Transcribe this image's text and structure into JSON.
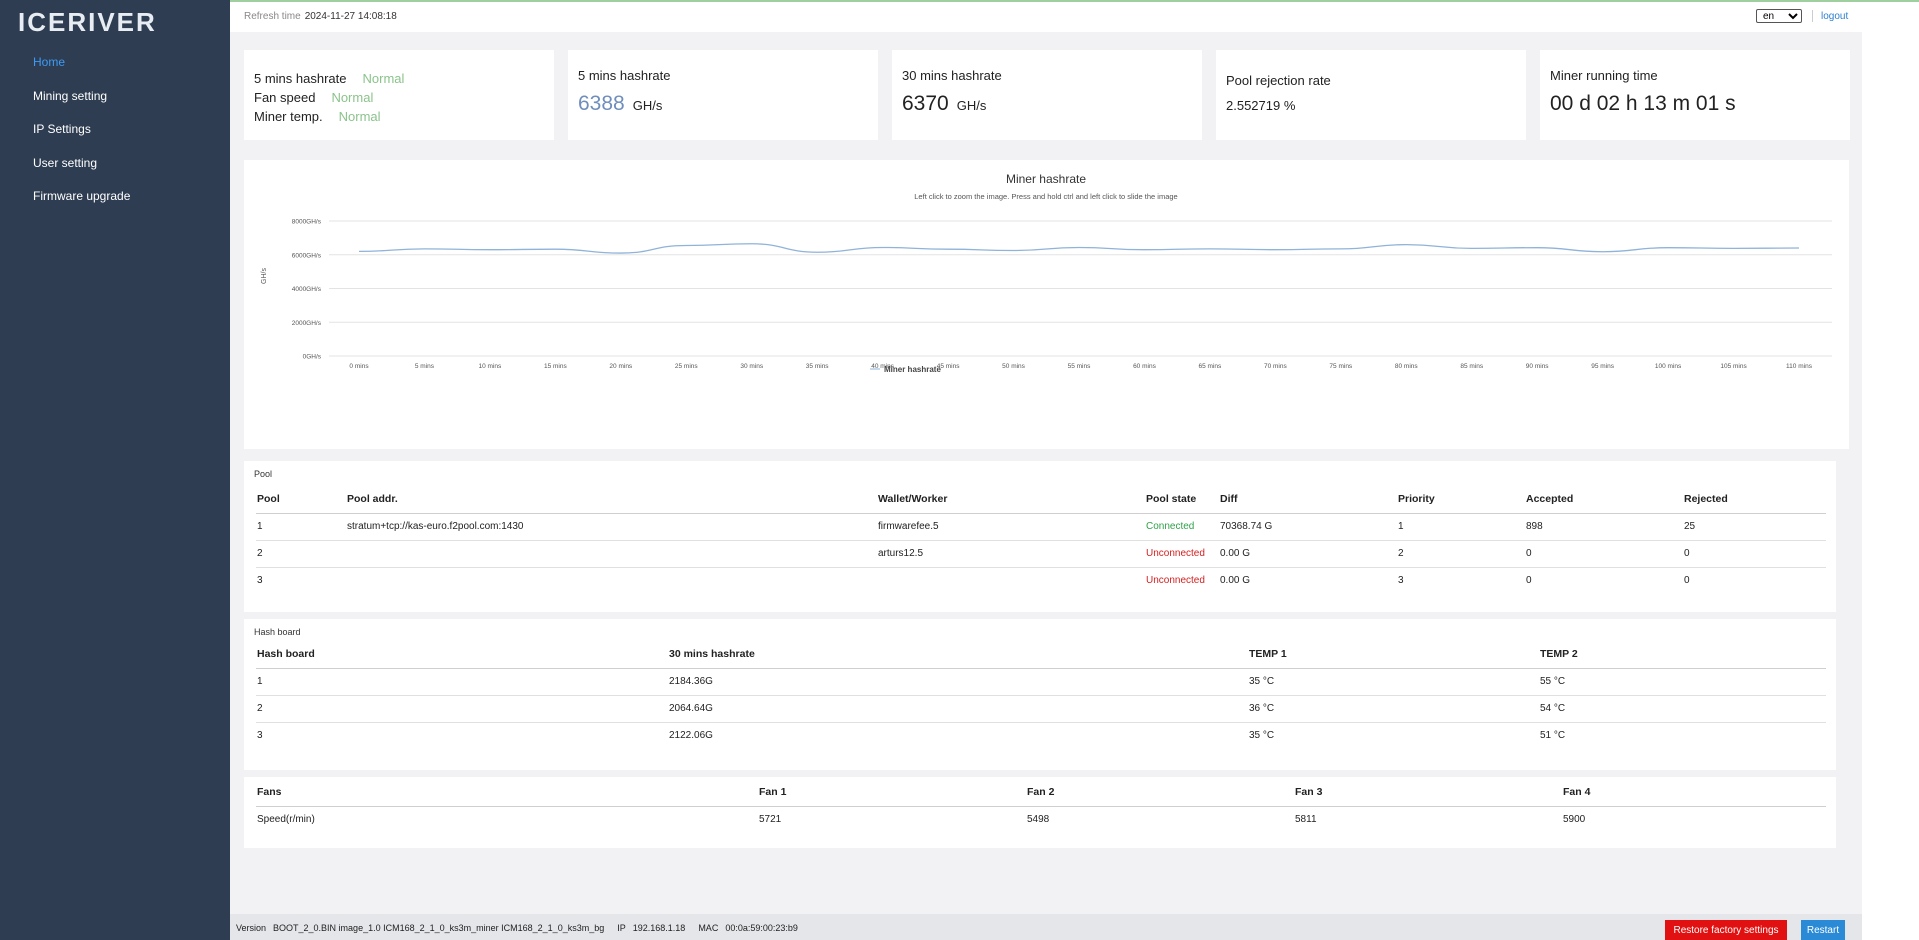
{
  "brand": {
    "logo_text": "ICERIVER"
  },
  "sidebar": {
    "items": [
      {
        "label": "Home",
        "active": true
      },
      {
        "label": "Mining setting"
      },
      {
        "label": "IP Settings"
      },
      {
        "label": "User setting"
      },
      {
        "label": "Firmware upgrade"
      }
    ]
  },
  "header": {
    "refresh_label": "Refresh time",
    "refresh_value": "2024-11-27 14:08:18",
    "language": "en",
    "logout": "logout"
  },
  "status": {
    "rows": [
      {
        "label": "5 mins hashrate",
        "value": "Normal"
      },
      {
        "label": "Fan speed",
        "value": "Normal"
      },
      {
        "label": "Miner temp.",
        "value": "Normal"
      }
    ],
    "ok_color": "#8bc38b"
  },
  "stats": {
    "hashrate_5m": {
      "label": "5 mins hashrate",
      "value": "6388",
      "unit": "GH/s"
    },
    "hashrate_30m": {
      "label": "30 mins hashrate",
      "value": "6370",
      "unit": "GH/s"
    },
    "pool_rejection": {
      "label": "Pool rejection rate",
      "value": "2.552719 %"
    },
    "running_time": {
      "label": "Miner running time",
      "value": "00 d 02 h 13 m 01 s"
    }
  },
  "chart_data": {
    "type": "line",
    "title": "Miner hashrate",
    "subtitle": "Left click to zoom the image. Press and hold ctrl and left click to slide the image",
    "ylabel": "GH/s",
    "xlabel": "",
    "ylim": [
      0,
      8000
    ],
    "yticks": [
      "0GH/s",
      "2000GH/s",
      "4000GH/s",
      "6000GH/s",
      "8000GH/s"
    ],
    "grid": true,
    "legend": "bottom",
    "categories": [
      "0 mins",
      "5 mins",
      "10 mins",
      "15 mins",
      "20 mins",
      "25 mins",
      "30 mins",
      "35 mins",
      "40 mins",
      "45 mins",
      "50 mins",
      "55 mins",
      "60 mins",
      "65 mins",
      "70 mins",
      "75 mins",
      "80 mins",
      "85 mins",
      "90 mins",
      "95 mins",
      "100 mins",
      "105 mins",
      "110 mins"
    ],
    "series": [
      {
        "name": "Miner hashrate",
        "color": "#8fb3d9",
        "values": [
          6200,
          6350,
          6300,
          6330,
          6100,
          6550,
          6650,
          6150,
          6430,
          6330,
          6250,
          6430,
          6300,
          6350,
          6300,
          6350,
          6600,
          6380,
          6420,
          6180,
          6420,
          6380,
          6400
        ]
      }
    ]
  },
  "pool": {
    "caption": "Pool",
    "headers": [
      "Pool",
      "Pool addr.",
      "Wallet/Worker",
      "Pool state",
      "Diff",
      "Priority",
      "Accepted",
      "Rejected"
    ],
    "rows": [
      {
        "pool": "1",
        "addr": "stratum+tcp://kas-euro.f2pool.com:1430",
        "worker": "firmwarefee.5",
        "state": "Connected",
        "diff": "70368.74 G",
        "priority": "1",
        "accepted": "898",
        "rejected": "25"
      },
      {
        "pool": "2",
        "addr": "",
        "worker": "arturs12.5",
        "state": "Unconnected",
        "diff": "0.00 G",
        "priority": "2",
        "accepted": "0",
        "rejected": "0"
      },
      {
        "pool": "3",
        "addr": "",
        "worker": "",
        "state": "Unconnected",
        "diff": "0.00 G",
        "priority": "3",
        "accepted": "0",
        "rejected": "0"
      }
    ]
  },
  "hashboard": {
    "caption": "Hash board",
    "headers": [
      "Hash board",
      "30 mins hashrate",
      "TEMP 1",
      "TEMP 2"
    ],
    "rows": [
      {
        "board": "1",
        "hashrate": "2184.36G",
        "temp1": "35 °C",
        "temp2": "55 °C"
      },
      {
        "board": "2",
        "hashrate": "2064.64G",
        "temp1": "36 °C",
        "temp2": "54 °C"
      },
      {
        "board": "3",
        "hashrate": "2122.06G",
        "temp1": "35 °C",
        "temp2": "51 °C"
      }
    ]
  },
  "fans": {
    "headers": [
      "Fans",
      "Fan 1",
      "Fan 2",
      "Fan 3",
      "Fan 4"
    ],
    "row_label": "Speed(r/min)",
    "values": [
      "5721",
      "5498",
      "5811",
      "5900"
    ]
  },
  "footer": {
    "version_label": "Version",
    "version_value": "BOOT_2_0.BIN image_1.0 ICM168_2_1_0_ks3m_miner ICM168_2_1_0_ks3m_bg",
    "ip_label": "IP",
    "ip_value": "192.168.1.18",
    "mac_label": "MAC",
    "mac_value": "00:0a:59:00:23:b9",
    "restore_button": "Restore factory settings",
    "restart_button": "Restart"
  },
  "colors": {
    "sidebar_bg": "#2e3d52",
    "nav_active": "#3d9bf5",
    "connected": "#2fa24a",
    "unconnected": "#d41f1f",
    "restore_btn": "#e21111",
    "restart_btn": "#2a8ad6"
  }
}
